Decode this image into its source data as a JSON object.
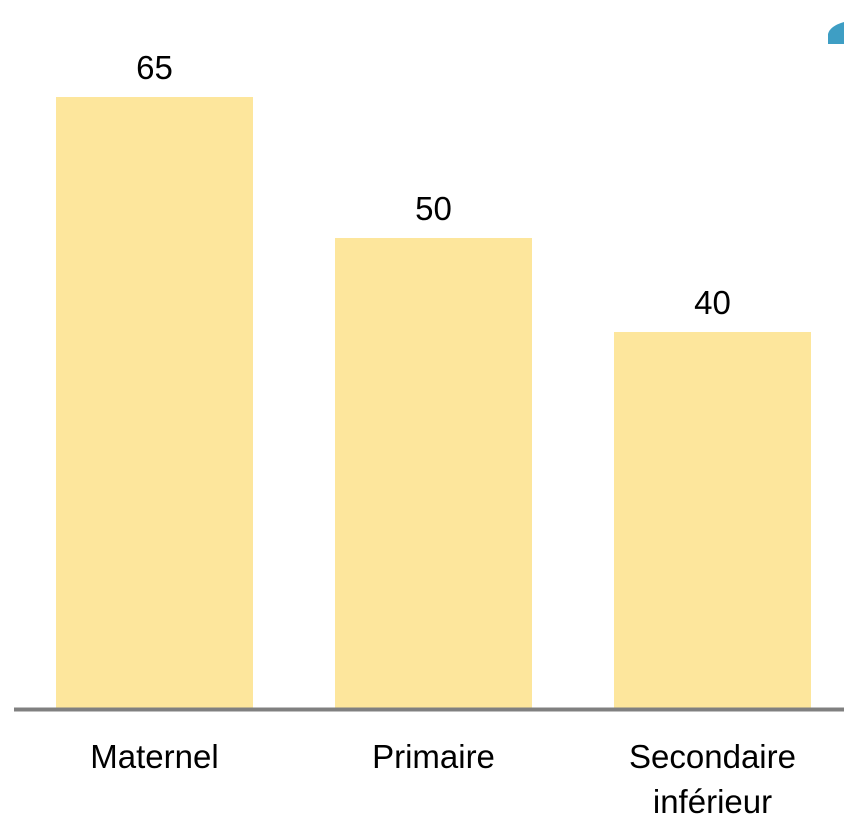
{
  "chart_data": {
    "type": "bar",
    "categories": [
      "Maternel",
      "Primaire",
      "Secondaire inférieur"
    ],
    "category_lines": [
      [
        "Maternel"
      ],
      [
        "Primaire"
      ],
      [
        "Secondaire",
        "inférieur"
      ]
    ],
    "values": [
      65,
      50,
      40
    ],
    "value_labels": [
      "65",
      "50",
      "40"
    ],
    "title": "",
    "xlabel": "",
    "ylabel": "",
    "ylim": [
      0,
      65
    ],
    "grid": false,
    "legend": "none",
    "colors": {
      "bar": "#FDE69C",
      "axis": "#808080",
      "text": "#000000",
      "corner_shape": "#3E9EC4"
    }
  }
}
